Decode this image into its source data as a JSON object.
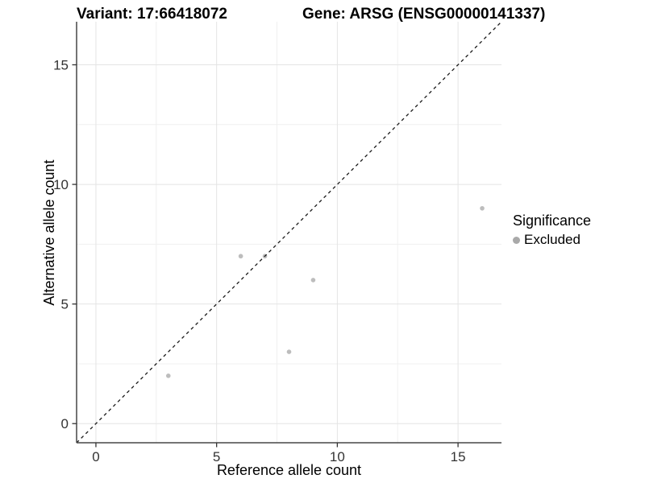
{
  "header": {
    "title_left": "Variant: 17:66418072",
    "title_right": "Gene: ARSG (ENSG00000141337)"
  },
  "chart_data": {
    "type": "scatter",
    "title": "Variant: 17:66418072 / Gene: ARSG (ENSG00000141337)",
    "xlabel": "Reference allele count",
    "ylabel": "Alternative allele count",
    "xlim": [
      -0.8,
      16.8
    ],
    "ylim": [
      -0.8,
      16.8
    ],
    "x_ticks": [
      0,
      5,
      10,
      15
    ],
    "y_ticks": [
      0,
      5,
      10,
      15
    ],
    "x_minor_ticks": [
      2.5,
      7.5,
      12.5
    ],
    "y_minor_ticks": [
      2.5,
      7.5,
      12.5
    ],
    "grid": "major+minor",
    "identity_line": {
      "slope": 1,
      "intercept": 0,
      "style": "dashed",
      "color": "#1a1a1a"
    },
    "series": [
      {
        "name": "Excluded",
        "color": "#bdbdbd",
        "points": [
          {
            "x": 3,
            "y": 2
          },
          {
            "x": 6,
            "y": 7
          },
          {
            "x": 7,
            "y": 7
          },
          {
            "x": 8,
            "y": 3
          },
          {
            "x": 9,
            "y": 6
          },
          {
            "x": 16,
            "y": 9
          }
        ]
      }
    ],
    "legend": {
      "title": "Significance",
      "position": "right",
      "entries": [
        {
          "label": "Excluded",
          "color": "#a9a9a9"
        }
      ]
    }
  },
  "style": {
    "point_color": "#bdbdbd",
    "axis_line_color": "#464646",
    "tick_color": "#333333",
    "tick_label_color": "#333333",
    "grid_major_color": "#e4e4e4",
    "grid_minor_color": "#f0f0f0",
    "background": "#ffffff"
  }
}
